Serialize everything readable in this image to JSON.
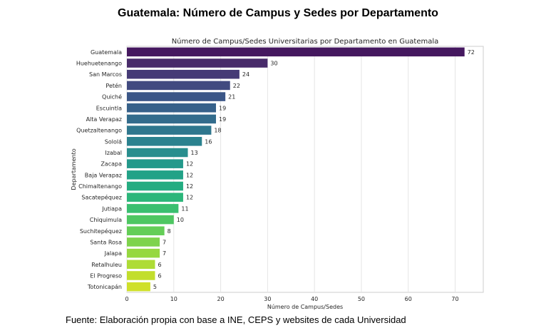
{
  "header": {
    "title": "Guatemala: Número de Campus y Sedes por Departamento"
  },
  "footer": {
    "source": "Fuente: Elaboración propia con base a INE, CEPS y websites de cada Universidad"
  },
  "chart_data": {
    "type": "bar",
    "orientation": "horizontal",
    "title": "Número de Campus/Sedes Universitarias por Departamento en Guatemala",
    "xlabel": "Número de Campus/Sedes",
    "ylabel": "Departamento",
    "xlim": [
      0,
      76
    ],
    "xticks": [
      0,
      10,
      20,
      30,
      40,
      50,
      60,
      70
    ],
    "grid": true,
    "palette": "viridis",
    "categories": [
      "Guatemala",
      "Huehuetenango",
      "San Marcos",
      "Petén",
      "Quiché",
      "Escuintla",
      "Alta Verapaz",
      "Quetzaltenango",
      "Sololá",
      "Izabal",
      "Zacapa",
      "Baja Verapaz",
      "Chimaltenango",
      "Sacatepéquez",
      "Jutiapa",
      "Chiquimula",
      "Suchitepéquez",
      "Santa Rosa",
      "Jalapa",
      "Retalhuleu",
      "El Progreso",
      "Totonicapán"
    ],
    "values": [
      72,
      30,
      24,
      22,
      21,
      19,
      19,
      18,
      16,
      13,
      12,
      12,
      12,
      12,
      11,
      10,
      8,
      7,
      7,
      6,
      6,
      5
    ],
    "colors": [
      "#45185f",
      "#482b6a",
      "#453a76",
      "#414a80",
      "#3b5687",
      "#37618a",
      "#336c8c",
      "#2f778e",
      "#2b828f",
      "#288e8e",
      "#24998b",
      "#22a287",
      "#24ac81",
      "#2cb67a",
      "#3abf70",
      "#4ec762",
      "#64ce57",
      "#7ed34c",
      "#96d840",
      "#aedc36",
      "#c2de2c",
      "#cfe02a"
    ]
  }
}
